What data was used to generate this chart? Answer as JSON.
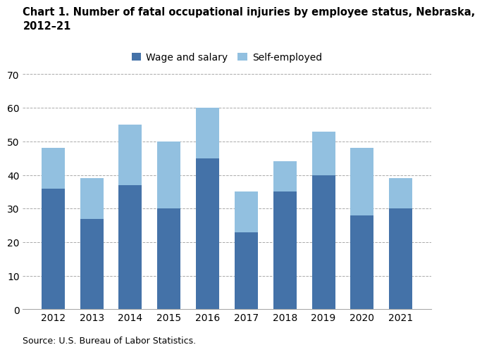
{
  "years": [
    "2012",
    "2013",
    "2014",
    "2015",
    "2016",
    "2017",
    "2018",
    "2019",
    "2020",
    "2021"
  ],
  "wage_and_salary": [
    36,
    27,
    37,
    30,
    45,
    23,
    35,
    40,
    28,
    30
  ],
  "self_employed": [
    12,
    12,
    18,
    20,
    15,
    12,
    9,
    13,
    20,
    9
  ],
  "wage_color": "#4472a8",
  "self_color": "#92c0e0",
  "title_line1": "Chart 1. Number of fatal occupational injuries by employee status, Nebraska,",
  "title_line2": "2012–21",
  "legend_wage": "Wage and salary",
  "legend_self": "Self-employed",
  "source": "Source: U.S. Bureau of Labor Statistics.",
  "ylim": [
    0,
    70
  ],
  "yticks": [
    0,
    10,
    20,
    30,
    40,
    50,
    60,
    70
  ],
  "grid_color": "#aaaaaa",
  "background_color": "#ffffff",
  "title_fontsize": 10.5,
  "legend_fontsize": 10,
  "tick_fontsize": 10,
  "source_fontsize": 9,
  "bar_width": 0.6
}
